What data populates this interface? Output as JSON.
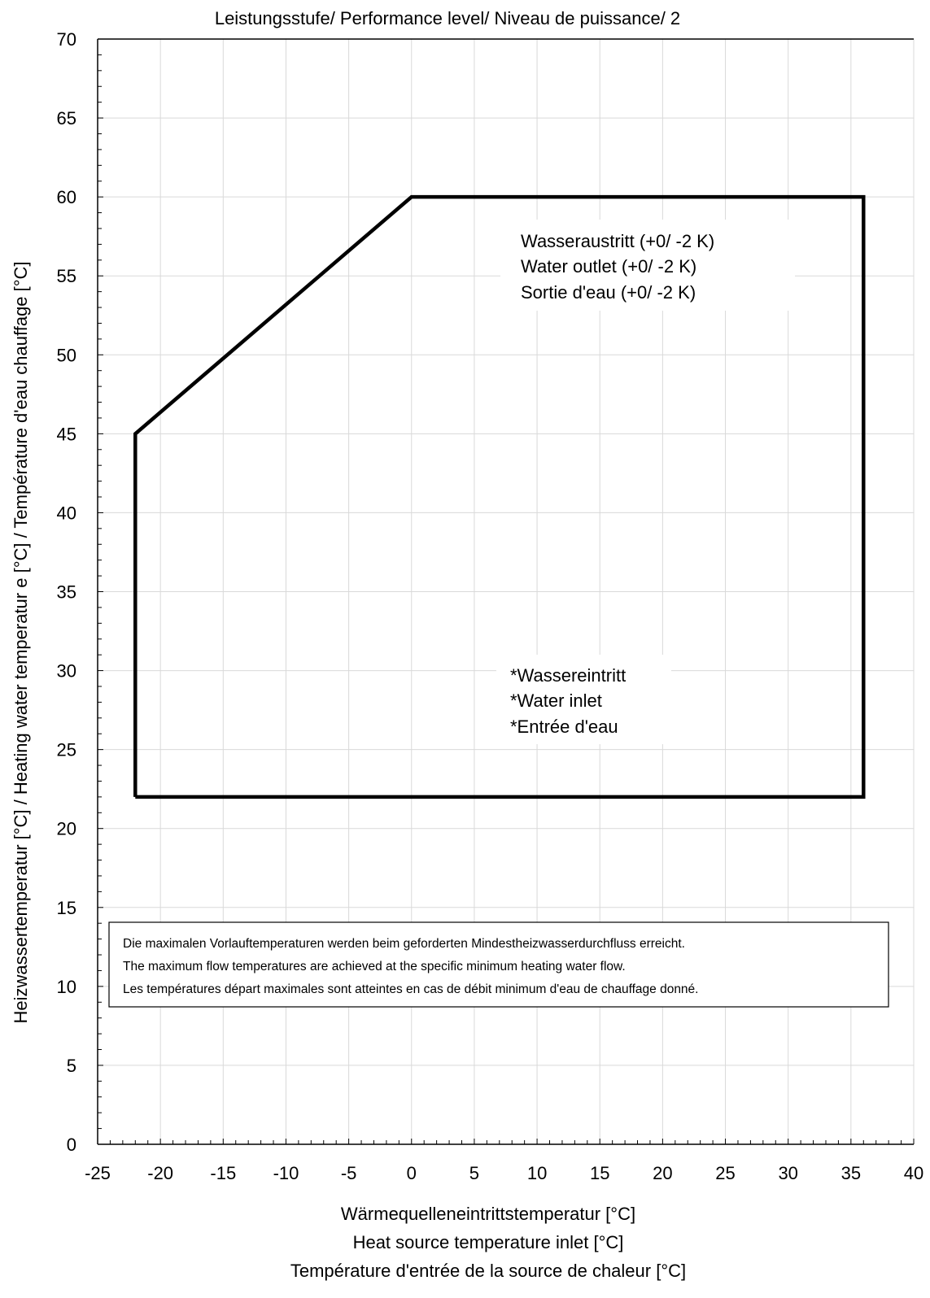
{
  "chart_data": {
    "type": "area",
    "title": "Leistungsstufe/ Performance level/ Niveau de puissance/ 2",
    "xlabel_lines": [
      "Wärmequelleneintrittstemperatur [°C]",
      "Heat source temperature inlet [°C]",
      "Température d'entrée de la source de chaleur  [°C]"
    ],
    "ylabel": "Heizwassertemperatur [°C]  /  Heating water temperatur      e [°C]  /  Température d'eau chauffage [°C]",
    "xlim": [
      -25,
      40
    ],
    "ylim": [
      0,
      70
    ],
    "x_ticks": [
      -25,
      -20,
      -15,
      -10,
      -5,
      0,
      5,
      10,
      15,
      20,
      25,
      30,
      35,
      40
    ],
    "y_ticks": [
      0,
      5,
      10,
      15,
      20,
      25,
      30,
      35,
      40,
      45,
      50,
      55,
      60,
      65,
      70
    ],
    "grid": true,
    "series": [
      {
        "x": [
          -22,
          -22,
          0,
          36,
          36,
          -22
        ],
        "y": [
          22,
          45,
          60,
          60,
          22,
          22
        ]
      }
    ],
    "annotations": [
      {
        "lines": [
          "Wasseraustritt  (+0/ -2 K)",
          "Water outlet (+0/ -2 K)",
          "Sortie d'eau (+0/ -2 K)"
        ]
      },
      {
        "lines": [
          "*Wassereintritt",
          "*Water inlet",
          "*Entrée d'eau"
        ]
      }
    ],
    "note_lines": [
      "Die maximalen Vorlauftemperaturen werden beim geforderten Mindestheizwasserdurchfluss erreicht.",
      "The maximum flow temperatures are achieved at the specific minimum heating  water flow.",
      "Les températures  départ maximales  sont  atteintes en cas de débit minimum d'eau de chauffage donné."
    ],
    "colors": {
      "envelope": "#000000",
      "grid": "#d9d9d9",
      "axis": "#000000"
    }
  }
}
